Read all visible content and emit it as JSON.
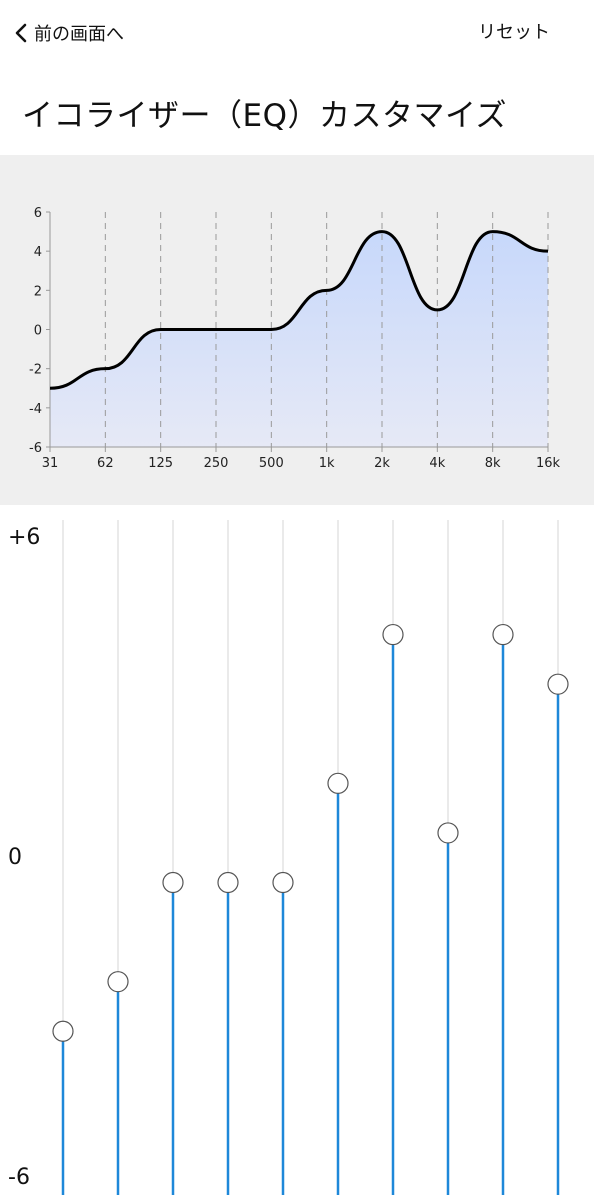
{
  "header": {
    "back_label": "前の画面へ",
    "reset_label": "リセット",
    "title": "イコライザー（EQ）カスタマイズ"
  },
  "chart_data": {
    "type": "area",
    "title": "",
    "xlabel": "",
    "ylabel": "",
    "categories": [
      "31",
      "62",
      "125",
      "250",
      "500",
      "1k",
      "2k",
      "4k",
      "8k",
      "16k"
    ],
    "values": [
      -3,
      -2,
      0,
      0,
      0,
      2,
      5,
      1,
      5,
      4
    ],
    "ylim": [
      -6,
      6
    ],
    "yticks": [
      "6",
      "4",
      "2",
      "0",
      "-2",
      "-4",
      "-6"
    ],
    "grid": "vertical-dashed",
    "line_color": "#000000",
    "fill_top_color": "#c7d8fb",
    "fill_bottom_color": "#e6e9f6"
  },
  "sliders": {
    "max_label": "+6",
    "mid_label": "0",
    "min_label": "-6",
    "range": [
      -6,
      6
    ],
    "values": [
      -3,
      -2,
      0,
      0,
      0,
      2,
      5,
      1,
      5,
      4
    ],
    "active_color": "#1e88d9",
    "track_color": "#e4e4e4"
  }
}
